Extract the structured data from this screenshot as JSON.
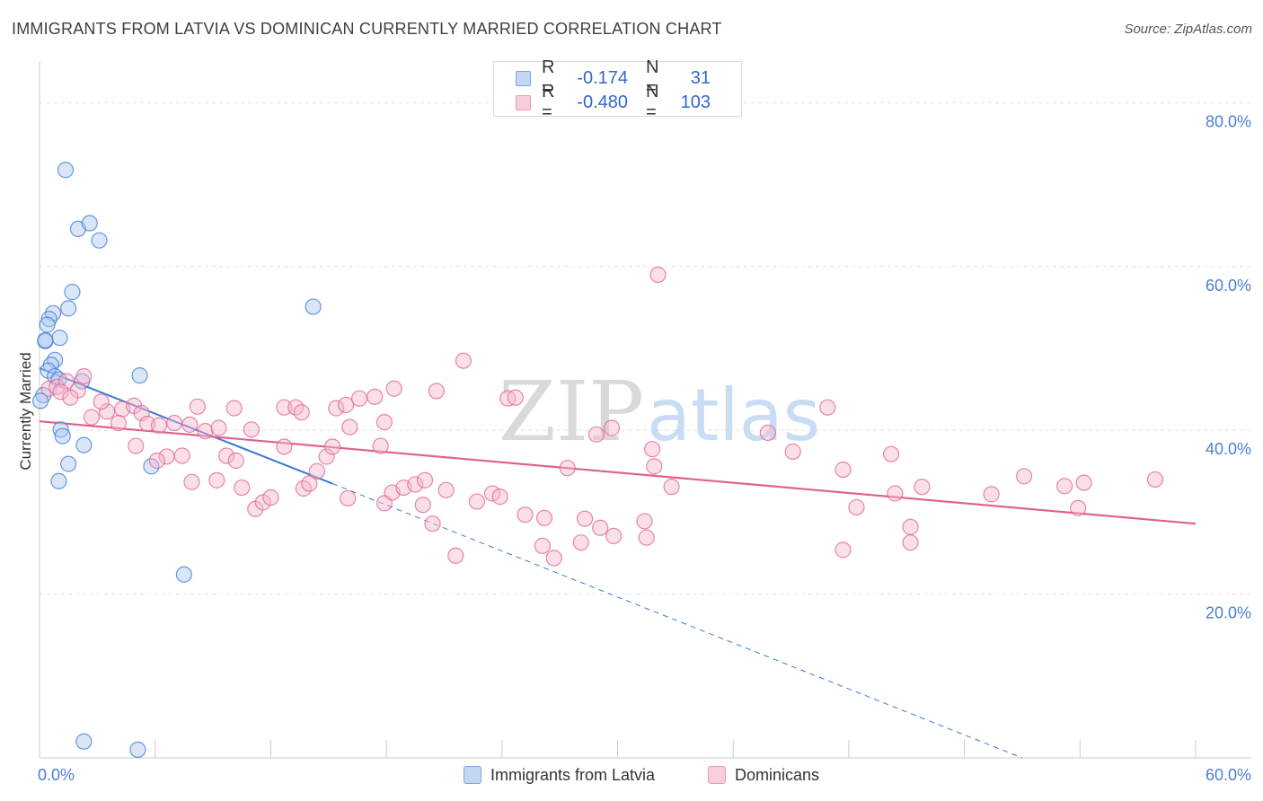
{
  "title": "IMMIGRANTS FROM LATVIA VS DOMINICAN CURRENTLY MARRIED CORRELATION CHART",
  "source": "Source: ZipAtlas.com",
  "watermark": {
    "zip": "ZIP",
    "atlas": "atlas"
  },
  "colors": {
    "blue": "#3a78d4",
    "blue_fill": "#aac8f0",
    "pink": "#e06090",
    "pink_fill": "#f5b8cc",
    "tick_label": "#4a7fd0",
    "grid": "#e2e2e2"
  },
  "legend": {
    "rows": [
      {
        "r_label": "R =",
        "r_value": "-0.174",
        "n_label": "N =",
        "n_value": "31"
      },
      {
        "r_label": "R =",
        "r_value": "-0.480",
        "n_label": "N =",
        "n_value": "103"
      }
    ]
  },
  "chart_data": {
    "type": "scatter",
    "xlabel": "",
    "ylabel": "Currently Married",
    "xlim": [
      0,
      60
    ],
    "ylim": [
      0,
      84
    ],
    "x_tick_labels": [
      "0.0%",
      "60.0%"
    ],
    "y_ticks": [
      20,
      40,
      60,
      80
    ],
    "y_tick_labels": [
      "20.0%",
      "40.0%",
      "60.0%",
      "80.0%"
    ],
    "grid": true,
    "legend_position": "bottom",
    "series": [
      {
        "name": "Immigrants from Latvia",
        "color": "#3a78d4",
        "points": [
          [
            1.35,
            71.8
          ],
          [
            2.0,
            64.6
          ],
          [
            2.6,
            65.3
          ],
          [
            3.1,
            63.2
          ],
          [
            1.7,
            56.9
          ],
          [
            1.5,
            54.9
          ],
          [
            0.7,
            54.3
          ],
          [
            0.5,
            53.6
          ],
          [
            0.4,
            52.9
          ],
          [
            1.05,
            51.3
          ],
          [
            0.3,
            50.9
          ],
          [
            0.8,
            48.6
          ],
          [
            0.6,
            48.0
          ],
          [
            0.45,
            47.3
          ],
          [
            0.8,
            46.6
          ],
          [
            1.0,
            46.2
          ],
          [
            2.2,
            46.0
          ],
          [
            5.2,
            46.7
          ],
          [
            0.2,
            44.3
          ],
          [
            0.05,
            43.6
          ],
          [
            1.1,
            40.1
          ],
          [
            1.2,
            39.3
          ],
          [
            2.3,
            38.2
          ],
          [
            1.5,
            35.9
          ],
          [
            1.0,
            33.8
          ],
          [
            5.8,
            35.6
          ],
          [
            14.2,
            55.1
          ],
          [
            7.5,
            22.4
          ],
          [
            2.3,
            2.0
          ],
          [
            5.1,
            1.0
          ],
          [
            0.3,
            51.0
          ]
        ],
        "trend": {
          "x0": 0.0,
          "y0": 47.6,
          "x1": 15.2,
          "y1": 33.5,
          "dash_x1": 51.0,
          "dash_y1": 0.0
        }
      },
      {
        "name": "Dominicans",
        "color": "#e06090",
        "points": [
          [
            0.5,
            45.1
          ],
          [
            0.9,
            45.3
          ],
          [
            1.4,
            46.0
          ],
          [
            2.3,
            46.6
          ],
          [
            1.1,
            44.7
          ],
          [
            2.0,
            44.9
          ],
          [
            1.6,
            44.0
          ],
          [
            2.7,
            41.6
          ],
          [
            3.5,
            42.3
          ],
          [
            3.2,
            43.5
          ],
          [
            4.3,
            42.6
          ],
          [
            4.9,
            43.0
          ],
          [
            5.3,
            42.1
          ],
          [
            4.1,
            40.9
          ],
          [
            5.6,
            40.8
          ],
          [
            6.2,
            40.6
          ],
          [
            7.0,
            40.9
          ],
          [
            7.8,
            40.7
          ],
          [
            8.2,
            42.9
          ],
          [
            8.6,
            39.9
          ],
          [
            9.3,
            40.3
          ],
          [
            10.1,
            42.7
          ],
          [
            11.0,
            40.1
          ],
          [
            12.7,
            42.8
          ],
          [
            13.3,
            42.8
          ],
          [
            13.6,
            42.2
          ],
          [
            15.4,
            42.7
          ],
          [
            15.9,
            43.1
          ],
          [
            16.6,
            43.9
          ],
          [
            17.4,
            44.1
          ],
          [
            18.4,
            45.1
          ],
          [
            20.6,
            44.8
          ],
          [
            22.0,
            48.5
          ],
          [
            24.3,
            43.9
          ],
          [
            17.9,
            41.0
          ],
          [
            16.1,
            40.4
          ],
          [
            5.0,
            38.1
          ],
          [
            6.6,
            36.8
          ],
          [
            7.4,
            36.9
          ],
          [
            6.1,
            36.3
          ],
          [
            9.7,
            36.9
          ],
          [
            10.2,
            36.3
          ],
          [
            12.7,
            38.0
          ],
          [
            14.9,
            36.8
          ],
          [
            15.2,
            38.0
          ],
          [
            17.7,
            38.1
          ],
          [
            7.9,
            33.7
          ],
          [
            9.2,
            33.9
          ],
          [
            10.5,
            33.0
          ],
          [
            11.2,
            30.4
          ],
          [
            11.6,
            31.2
          ],
          [
            12.0,
            31.8
          ],
          [
            13.7,
            32.9
          ],
          [
            14.0,
            33.5
          ],
          [
            14.4,
            35.0
          ],
          [
            16.0,
            31.7
          ],
          [
            17.9,
            31.1
          ],
          [
            18.3,
            32.4
          ],
          [
            18.9,
            33.0
          ],
          [
            19.5,
            33.4
          ],
          [
            20.0,
            33.9
          ],
          [
            19.9,
            30.9
          ],
          [
            20.4,
            28.6
          ],
          [
            21.1,
            32.7
          ],
          [
            22.7,
            31.3
          ],
          [
            23.5,
            32.3
          ],
          [
            23.9,
            31.9
          ],
          [
            25.2,
            29.7
          ],
          [
            26.2,
            29.3
          ],
          [
            28.3,
            29.2
          ],
          [
            29.1,
            28.1
          ],
          [
            26.7,
            24.4
          ],
          [
            21.6,
            24.7
          ],
          [
            29.8,
            27.1
          ],
          [
            31.4,
            28.9
          ],
          [
            29.7,
            40.3
          ],
          [
            31.8,
            37.7
          ],
          [
            31.9,
            35.6
          ],
          [
            32.8,
            33.1
          ],
          [
            28.9,
            39.5
          ],
          [
            27.4,
            35.4
          ],
          [
            31.5,
            26.9
          ],
          [
            26.1,
            25.9
          ],
          [
            28.1,
            26.3
          ],
          [
            37.8,
            39.7
          ],
          [
            39.1,
            37.4
          ],
          [
            40.9,
            42.8
          ],
          [
            41.7,
            35.2
          ],
          [
            44.2,
            37.1
          ],
          [
            42.4,
            30.6
          ],
          [
            44.4,
            32.3
          ],
          [
            45.8,
            33.1
          ],
          [
            45.2,
            28.2
          ],
          [
            45.2,
            26.3
          ],
          [
            49.4,
            32.2
          ],
          [
            51.1,
            34.4
          ],
          [
            53.2,
            33.2
          ],
          [
            54.2,
            33.6
          ],
          [
            53.9,
            30.5
          ],
          [
            57.9,
            34.0
          ],
          [
            41.7,
            25.4
          ],
          [
            32.1,
            59.0
          ],
          [
            24.7,
            44.0
          ]
        ],
        "trend": {
          "x0": 0.0,
          "y0": 41.1,
          "x1": 60.0,
          "y1": 28.6
        }
      }
    ]
  }
}
